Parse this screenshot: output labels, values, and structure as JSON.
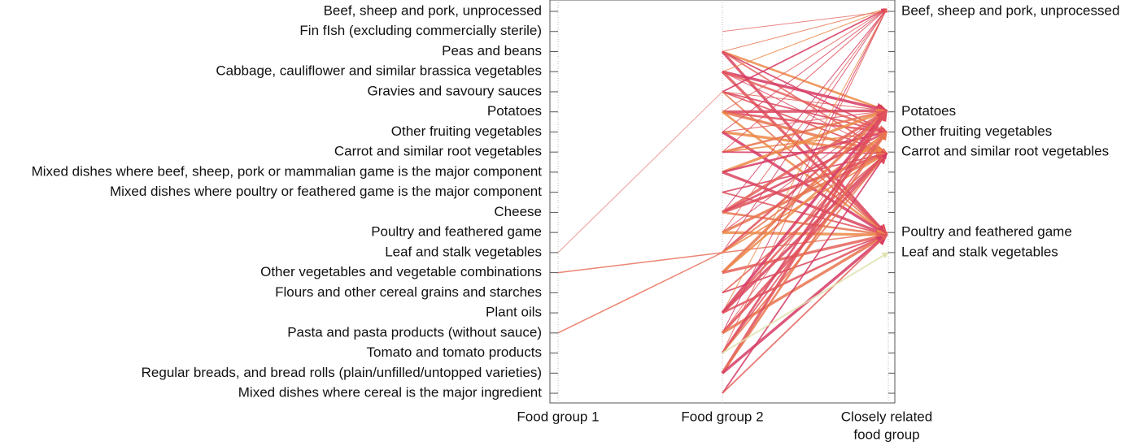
{
  "left_labels": [
    "Beef, sheep and pork, unprocessed",
    "Fin fIsh (excluding commercially sterile)",
    "Peas and beans",
    "Cabbage, cauliflower and similar brassica vegetables",
    "Gravies and savoury sauces",
    "Potatoes",
    "Other fruiting vegetables",
    "Carrot and similar root vegetables",
    "Mixed dishes where beef, sheep, pork or mammalian game is the major component",
    "Mixed dishes where poultry or feathered game is the major component",
    "Cheese",
    "Poultry and feathered game",
    "Leaf and stalk vegetables",
    "Other vegetables and vegetable combinations",
    "Flours and other cereal grains and starches",
    "Plant oils",
    "Pasta and pasta products (without sauce)",
    "Tomato and tomato products",
    "Regular breads, and bread rolls (plain/unfilled/untopped varieties)",
    "Mixed dishes where cereal is the major ingredient"
  ],
  "right_labels": [
    {
      "row": 0,
      "label": "Beef, sheep and pork, unprocessed"
    },
    {
      "row": 5,
      "label": "Potatoes"
    },
    {
      "row": 6,
      "label": "Other fruiting vegetables"
    },
    {
      "row": 7,
      "label": "Carrot and similar root vegetables"
    },
    {
      "row": 11,
      "label": "Poultry and feathered game"
    },
    {
      "row": 12,
      "label": "Leaf and stalk vegetables"
    }
  ],
  "axis_labels": {
    "group1": "Food group 1",
    "group2": "Food group 2",
    "related": [
      "Closely related",
      "food group"
    ]
  }
}
